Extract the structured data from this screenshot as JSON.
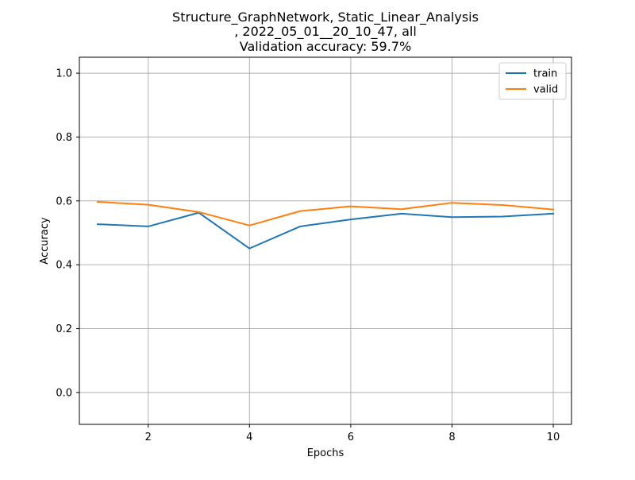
{
  "chart_data": {
    "type": "line",
    "title_lines": [
      "Structure_GraphNetwork, Static_Linear_Analysis",
      ", 2022_05_01__20_10_47, all",
      "Validation accuracy: 59.7%"
    ],
    "xlabel": "Epochs",
    "ylabel": "Accuracy",
    "xlim": [
      0.64,
      10.36
    ],
    "ylim": [
      -0.1,
      1.05
    ],
    "xticks": [
      2,
      4,
      6,
      8,
      10
    ],
    "yticks": [
      0.0,
      0.2,
      0.4,
      0.6,
      0.8,
      1.0
    ],
    "xtick_labels": [
      "2",
      "4",
      "6",
      "8",
      "10"
    ],
    "ytick_labels": [
      "0.0",
      "0.2",
      "0.4",
      "0.6",
      "0.8",
      "1.0"
    ],
    "grid": true,
    "legend_position": "top-right",
    "x": [
      1,
      2,
      3,
      4,
      5,
      6,
      7,
      8,
      9,
      10
    ],
    "series": [
      {
        "name": "train",
        "color": "#1f77b4",
        "values": [
          0.527,
          0.52,
          0.563,
          0.451,
          0.52,
          0.542,
          0.56,
          0.549,
          0.551,
          0.56
        ]
      },
      {
        "name": "valid",
        "color": "#ff7f0e",
        "values": [
          0.597,
          0.588,
          0.565,
          0.523,
          0.568,
          0.583,
          0.574,
          0.594,
          0.587,
          0.573
        ]
      }
    ]
  }
}
